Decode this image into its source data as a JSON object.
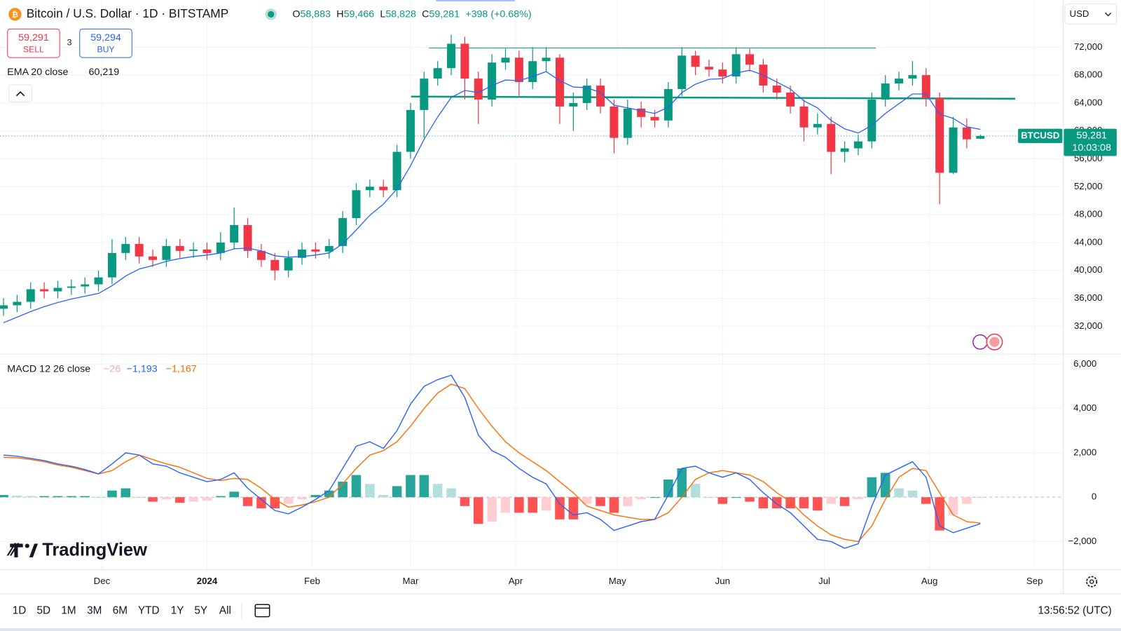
{
  "header": {
    "symbol": "Bitcoin / U.S. Dollar · 1D · BITSTAMP",
    "ohlc": [
      {
        "key": "O",
        "value": "58,883"
      },
      {
        "key": "H",
        "value": "59,466"
      },
      {
        "key": "L",
        "value": "58,828"
      },
      {
        "key": "C",
        "value": "59,281"
      }
    ],
    "change": "+398 (+0.68%)"
  },
  "sell": {
    "price": "59,291",
    "label": "SELL"
  },
  "spread": "3",
  "buy": {
    "price": "59,294",
    "label": "BUY"
  },
  "currency": "USD",
  "logo": "TradingView",
  "timeframes": [
    "1D",
    "5D",
    "1M",
    "3M",
    "6M",
    "YTD",
    "1Y",
    "5Y",
    "All"
  ],
  "clock": "13:56:52 (UTC)",
  "chart_data": [
    {
      "type": "candlestick",
      "up_color": "#089981",
      "down_color": "#f23645",
      "xlim": [
        -0.26,
        78.1
      ],
      "xticks": [
        {
          "value": 7.25,
          "label": "Dec"
        },
        {
          "value": 15,
          "label": "2024"
        },
        {
          "value": 22.75,
          "label": "Feb"
        },
        {
          "value": 30,
          "label": "Mar"
        },
        {
          "value": 37.75,
          "label": "Apr"
        },
        {
          "value": 45.25,
          "label": "May"
        },
        {
          "value": 53,
          "label": "Jun"
        },
        {
          "value": 60.5,
          "label": "Jul"
        },
        {
          "value": 68.25,
          "label": "Aug"
        },
        {
          "value": 76,
          "label": "Sep"
        }
      ],
      "ylim": [
        28100,
        78770
      ],
      "yticks": [
        {
          "value": 72000,
          "label": "72,000"
        },
        {
          "value": 68000,
          "label": "68,000"
        },
        {
          "value": 64000,
          "label": "64,000"
        },
        {
          "value": 60000,
          "label": "60,000"
        },
        {
          "value": 56000,
          "label": "56,000"
        },
        {
          "value": 52000,
          "label": "52,000"
        },
        {
          "value": 48000,
          "label": "48,000"
        },
        {
          "value": 44000,
          "label": "44,000"
        },
        {
          "value": 40000,
          "label": "40,000"
        },
        {
          "value": 36000,
          "label": "36,000"
        },
        {
          "value": 32000,
          "label": "32,000"
        }
      ],
      "grid": true,
      "open": [
        34500,
        35000,
        35500,
        37300,
        37000,
        37500,
        37700,
        38000,
        39000,
        42500,
        43800,
        42000,
        41500,
        43500,
        42800,
        43000,
        42500,
        44000,
        46500,
        42800,
        41500,
        40000,
        41800,
        43000,
        42700,
        43500,
        47500,
        51500,
        52000,
        51500,
        57000,
        63000,
        67500,
        69000,
        72500,
        67500,
        64500,
        69800,
        70500,
        67000,
        70000,
        70500,
        63500,
        64000,
        66500,
        63500,
        59000,
        63200,
        62000,
        61500,
        66000,
        70800,
        69200,
        68800,
        67800,
        71000,
        69500,
        66500,
        65500,
        63500,
        60500,
        61000,
        57000,
        57500,
        58500,
        64500,
        66800,
        67500,
        68000,
        64700,
        54000,
        60500,
        58883
      ],
      "high": [
        36000,
        36500,
        38300,
        38300,
        38500,
        38700,
        39000,
        40000,
        44500,
        44800,
        44800,
        43000,
        44500,
        44500,
        44000,
        44000,
        45500,
        49000,
        47500,
        43800,
        42500,
        42800,
        44000,
        44000,
        44500,
        48500,
        52500,
        53000,
        53000,
        58000,
        64000,
        68500,
        70000,
        73800,
        73500,
        68500,
        71000,
        71800,
        71500,
        72000,
        72000,
        71000,
        65500,
        67500,
        67500,
        64500,
        64500,
        64200,
        63000,
        67000,
        72000,
        71500,
        70200,
        69800,
        72000,
        71800,
        70300,
        67500,
        66500,
        64500,
        62500,
        62000,
        58500,
        59500,
        65500,
        68000,
        68500,
        70000,
        69000,
        65500,
        62000,
        61800,
        59466
      ],
      "low": [
        33500,
        34000,
        34500,
        36000,
        36000,
        36500,
        36700,
        37000,
        38000,
        41500,
        41000,
        40500,
        40500,
        41800,
        41800,
        41500,
        41500,
        43000,
        41800,
        40500,
        38600,
        39000,
        40800,
        41700,
        41700,
        42500,
        46500,
        50500,
        50500,
        50500,
        56000,
        59000,
        66500,
        68000,
        64500,
        61000,
        63500,
        68800,
        65000,
        66000,
        68500,
        61000,
        60000,
        63000,
        62500,
        56800,
        58000,
        60500,
        60500,
        60500,
        65000,
        68000,
        67800,
        66800,
        66800,
        68500,
        65500,
        64500,
        62500,
        58500,
        59500,
        53800,
        55500,
        56500,
        57500,
        63500,
        65800,
        66500,
        63500,
        49500,
        53800,
        57500,
        58828
      ],
      "close": [
        35000,
        35500,
        37300,
        37000,
        37500,
        37700,
        38000,
        39000,
        42500,
        43800,
        42000,
        41500,
        43500,
        42800,
        43000,
        42500,
        44000,
        46500,
        42800,
        41500,
        40000,
        41800,
        43000,
        42700,
        43500,
        47500,
        51500,
        52000,
        51500,
        57000,
        63000,
        67500,
        69000,
        72500,
        67500,
        64500,
        69800,
        70500,
        67000,
        70000,
        70500,
        63500,
        64000,
        66500,
        63500,
        59000,
        63200,
        62000,
        61500,
        66000,
        70800,
        69200,
        68800,
        67800,
        71000,
        69500,
        66500,
        65500,
        63500,
        60500,
        61000,
        57000,
        57500,
        58500,
        64500,
        66800,
        67500,
        68000,
        64700,
        54000,
        60500,
        58800,
        59281
      ],
      "ema": {
        "name": "EMA 20 close",
        "color": "#2962ff",
        "value_label": "60,219",
        "values": [
          32500,
          33300,
          34100,
          34800,
          35400,
          35900,
          36300,
          36700,
          37800,
          39200,
          40200,
          40700,
          41300,
          41700,
          42000,
          42200,
          42500,
          43100,
          43200,
          42800,
          42100,
          41900,
          42000,
          42200,
          42500,
          43800,
          45800,
          47900,
          49500,
          51700,
          55000,
          58800,
          62000,
          64800,
          65800,
          65500,
          66500,
          67300,
          67200,
          67800,
          68500,
          67200,
          66300,
          66200,
          65500,
          63700,
          63300,
          62900,
          62500,
          63400,
          65500,
          66700,
          67400,
          67500,
          68300,
          68700,
          68000,
          67000,
          66000,
          64300,
          63300,
          61500,
          60300,
          59700,
          60800,
          62500,
          63900,
          65300,
          65300,
          62400,
          61800,
          60600,
          60219
        ]
      },
      "price_tag": {
        "symbol": "BTCUSD",
        "label": "59,281",
        "countdown": "10:03:08"
      }
    },
    {
      "type": "macd",
      "title": "MACD 12 26 close",
      "xlim": [
        -0.26,
        78.1
      ],
      "ylim": [
        -3226,
        6419
      ],
      "yticks": [
        {
          "value": 6000,
          "label": "6,000"
        },
        {
          "value": 4000,
          "label": "4,000"
        },
        {
          "value": 2000,
          "label": "2,000"
        },
        {
          "value": 0,
          "label": "0"
        },
        {
          "value": -2000,
          "label": "−2,000"
        }
      ],
      "grid": true,
      "histogram": {
        "colors": [
          "#26a69a",
          "#b2dfdb",
          "#ff5252",
          "#ffcdd2"
        ],
        "value_label": "−26",
        "values": [
          100,
          70,
          50,
          50,
          50,
          50,
          50,
          0,
          300,
          400,
          0,
          -200,
          -100,
          -250,
          -200,
          -150,
          50,
          250,
          -400,
          -500,
          -500,
          -300,
          -100,
          100,
          300,
          700,
          1000,
          600,
          100,
          500,
          1000,
          1000,
          600,
          400,
          -400,
          -1200,
          -1100,
          -700,
          -700,
          -700,
          -600,
          -1000,
          -1000,
          -300,
          -400,
          -700,
          -400,
          -100,
          0,
          800,
          1300,
          600,
          0,
          -300,
          0,
          -200,
          -500,
          -500,
          -500,
          -500,
          -600,
          -300,
          -400,
          -100,
          900,
          1100,
          400,
          300,
          -300,
          -1500,
          -800,
          -300,
          -26
        ]
      },
      "macd": {
        "color": "#2962ff",
        "value_label": "−1,193",
        "values": [
          1900,
          1850,
          1750,
          1650,
          1500,
          1400,
          1250,
          1050,
          1500,
          2000,
          1900,
          1500,
          1400,
          1100,
          900,
          700,
          800,
          1100,
          400,
          -100,
          -600,
          -750,
          -450,
          -100,
          300,
          1300,
          2300,
          2500,
          2200,
          3000,
          4200,
          5000,
          5300,
          5500,
          4500,
          2800,
          2100,
          1800,
          1300,
          900,
          600,
          -300,
          -800,
          -700,
          -1000,
          -1500,
          -1300,
          -1100,
          -1000,
          100,
          1300,
          1400,
          1100,
          900,
          1100,
          800,
          200,
          -300,
          -700,
          -1300,
          -1900,
          -2000,
          -2300,
          -2100,
          -400,
          1000,
          1300,
          1600,
          900,
          -1300,
          -1600,
          -1400,
          -1193
        ]
      },
      "signal": {
        "color": "#ff6d00",
        "value_label": "−1,167",
        "values": [
          1800,
          1780,
          1700,
          1600,
          1450,
          1350,
          1200,
          1050,
          1200,
          1600,
          1900,
          1700,
          1500,
          1350,
          1100,
          850,
          750,
          850,
          800,
          400,
          -100,
          -450,
          -350,
          -200,
          0,
          600,
          1300,
          1900,
          2100,
          2500,
          3200,
          4000,
          4700,
          5100,
          4900,
          4000,
          3200,
          2500,
          2000,
          1600,
          1200,
          700,
          200,
          -400,
          -600,
          -800,
          -900,
          -1000,
          -1000,
          -700,
          0,
          800,
          1100,
          1200,
          1100,
          1000,
          700,
          200,
          -200,
          -800,
          -1300,
          -1700,
          -1900,
          -2000,
          -1300,
          -100,
          900,
          1300,
          1200,
          200,
          -800,
          -1100,
          -1167
        ]
      }
    }
  ]
}
